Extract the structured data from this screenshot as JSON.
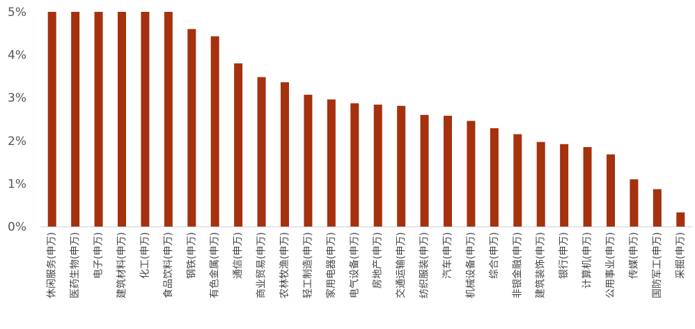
{
  "chart_data": {
    "type": "bar",
    "title": "",
    "xlabel": "",
    "ylabel": "",
    "ylim": [
      0,
      5
    ],
    "y_ticks": [
      "0%",
      "1%",
      "2%",
      "3%",
      "4%",
      "5%"
    ],
    "grid": false,
    "bar_color": "#A5310E",
    "categories": [
      "休闲服务(申万)",
      "医药生物(申万)",
      "电子(申万)",
      "建筑材料(申万)",
      "化工(申万)",
      "食品饮料(申万)",
      "钢铁(申万)",
      "有色金属(申万)",
      "通信(申万)",
      "商业贸易(申万)",
      "农林牧渔(申万)",
      "轻工制造(申万)",
      "家用电器(申万)",
      "电气设备(申万)",
      "房地产(申万)",
      "交通运输(申万)",
      "纺织服装(申万)",
      "汽车(申万)",
      "机械设备(申万)",
      "综合(申万)",
      "非银金融(申万)",
      "建筑装饰(申万)",
      "银行(申万)",
      "计算机(申万)",
      "公用事业(申万)",
      "传媒(申万)",
      "国防军工(申万)",
      "采掘(申万)"
    ],
    "values": [
      5.0,
      5.0,
      5.0,
      5.0,
      5.0,
      5.0,
      4.6,
      4.43,
      3.8,
      3.48,
      3.36,
      3.07,
      2.96,
      2.87,
      2.84,
      2.81,
      2.6,
      2.58,
      2.46,
      2.29,
      2.15,
      1.97,
      1.92,
      1.85,
      1.68,
      1.1,
      0.87,
      0.33
    ]
  }
}
